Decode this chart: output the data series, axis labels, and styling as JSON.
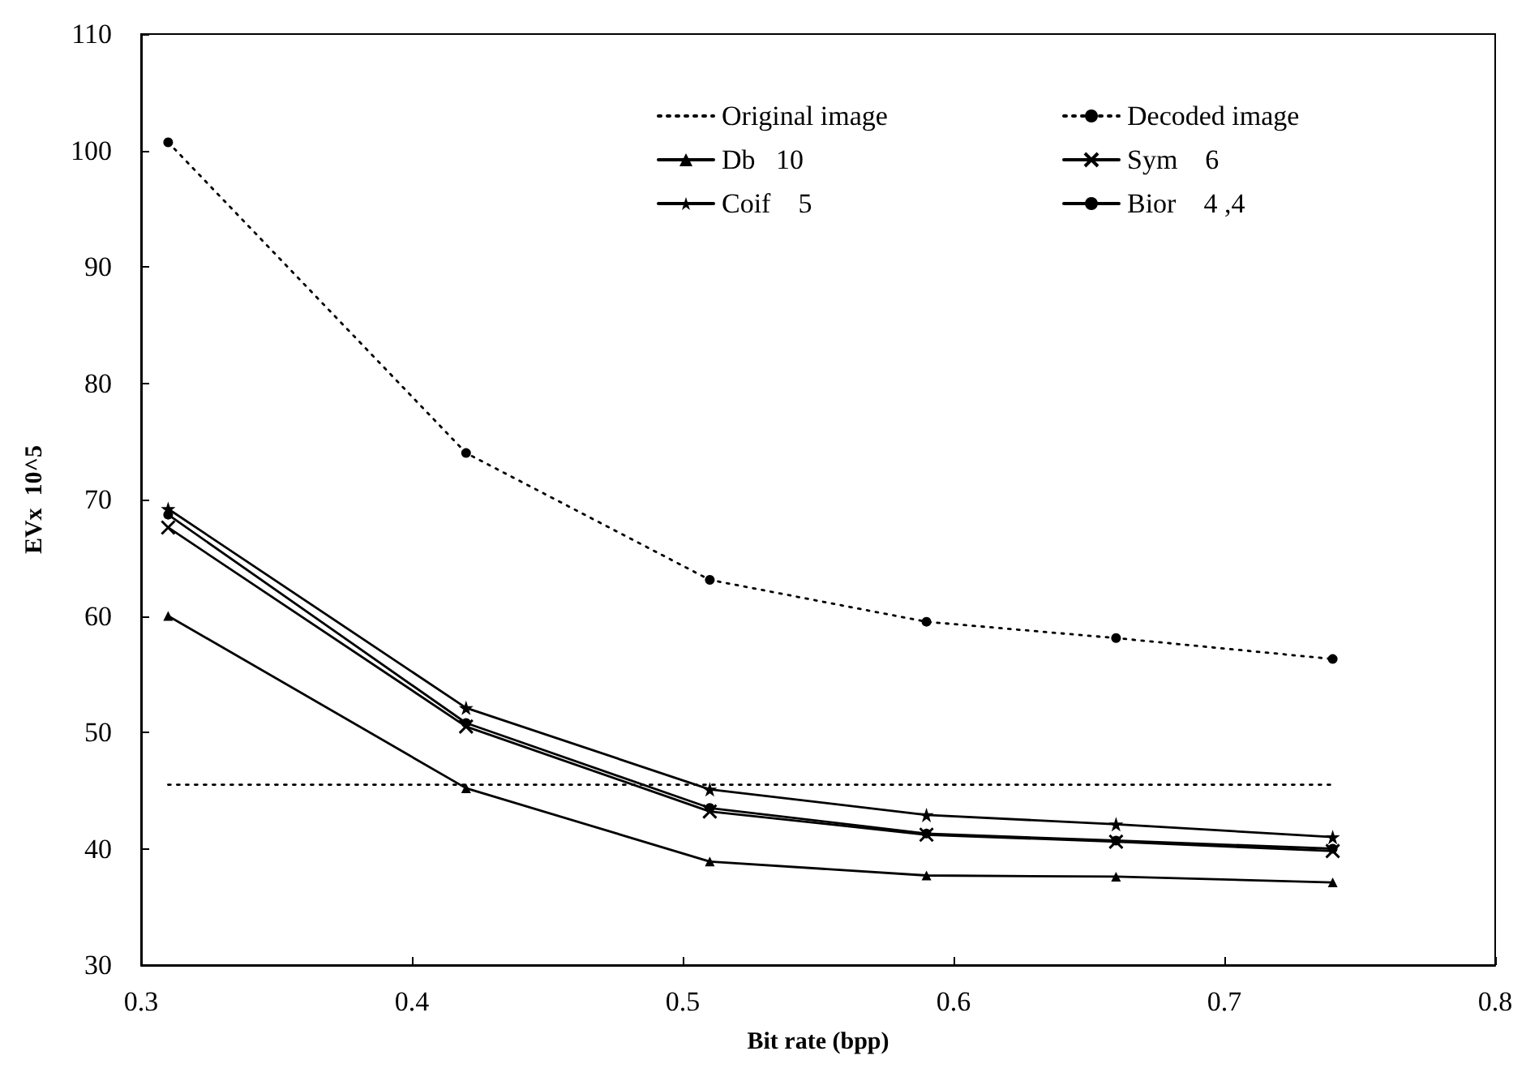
{
  "chart_data": {
    "type": "line",
    "xlabel": "Bit rate (bpp)",
    "ylabel": "EVx  10^5",
    "x": [
      0.31,
      0.42,
      0.51,
      0.59,
      0.66,
      0.74
    ],
    "xlim": [
      0.3,
      0.8
    ],
    "xticks": [
      0.3,
      0.4,
      0.5,
      0.6,
      0.7,
      0.8
    ],
    "ylim": [
      30,
      110
    ],
    "yticks": [
      30,
      40,
      50,
      60,
      70,
      80,
      90,
      100,
      110
    ],
    "grid": false,
    "legend": "top right",
    "series": [
      {
        "name": "Original image",
        "color": "#000000",
        "line_style": "dotted",
        "marker": "none",
        "values": [
          45.5,
          45.5,
          45.5,
          45.5,
          45.5,
          45.5
        ]
      },
      {
        "name": "Decoded image",
        "color": "#000000",
        "line_style": "dotted",
        "marker": "circle",
        "values": [
          100.7,
          74.0,
          63.1,
          59.5,
          58.1,
          56.3
        ]
      },
      {
        "name": "Db   10",
        "color": "#000000",
        "line_style": "solid",
        "marker": "triangle",
        "values": [
          60.0,
          45.2,
          38.9,
          37.7,
          37.6,
          37.1
        ]
      },
      {
        "name": "Sym    6",
        "color": "#000000",
        "line_style": "solid",
        "marker": "cross",
        "values": [
          67.6,
          50.5,
          43.2,
          41.2,
          40.6,
          39.8
        ]
      },
      {
        "name": "Coif    5",
        "color": "#000000",
        "line_style": "solid",
        "marker": "star",
        "values": [
          69.2,
          52.1,
          45.1,
          42.9,
          42.1,
          41.0
        ]
      },
      {
        "name": "Bior    4 ,4",
        "color": "#000000",
        "line_style": "solid",
        "marker": "circle",
        "values": [
          68.7,
          50.8,
          43.5,
          41.3,
          40.7,
          40.0
        ]
      }
    ]
  }
}
